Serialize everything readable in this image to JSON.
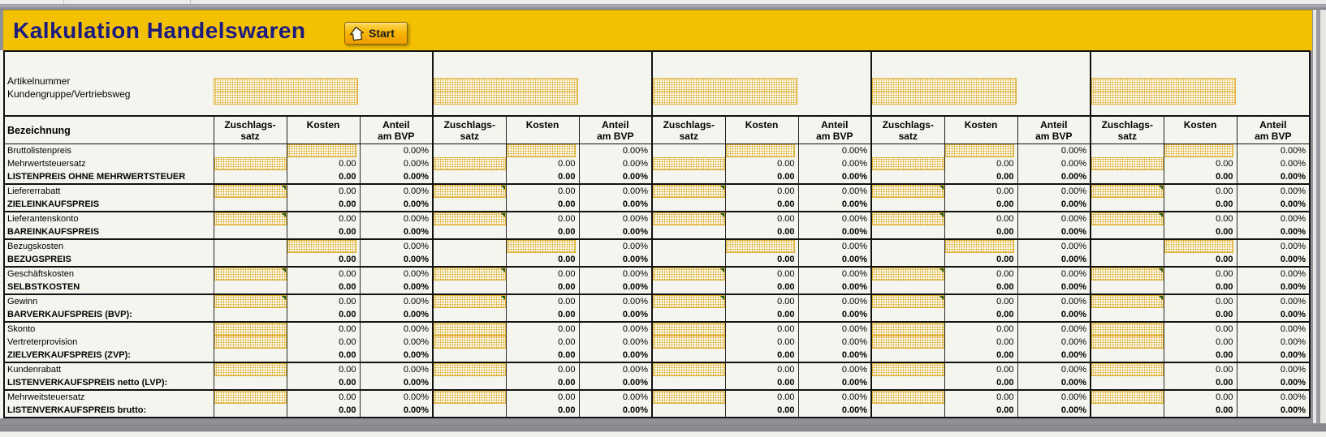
{
  "header": {
    "title": "Kalkulation Handelswaren",
    "start_button_label": "Start"
  },
  "info_panel": {
    "row_labels": [
      "Artikelnummer",
      "Kundengruppe/Vertriebsweg"
    ]
  },
  "table": {
    "label_header": "Bezeichnung",
    "group_count": 5,
    "column_headers": [
      {
        "key": "zuschlagssatz",
        "line1": "Zuschlags-",
        "line2": "satz"
      },
      {
        "key": "kosten",
        "line1": "Kosten",
        "line2": ""
      },
      {
        "key": "anteil-am-bvp",
        "line1": "Anteil",
        "line2": "am BVP"
      }
    ],
    "rows": [
      {
        "label": "Bruttolistenpreis",
        "bold": false,
        "zs_input": false,
        "kosten_input": true,
        "err": false,
        "kosten": "",
        "anteil": "0.00%",
        "section_end": false
      },
      {
        "label": "Mehrwertsteuersatz",
        "bold": false,
        "zs_input": true,
        "kosten_input": false,
        "err": false,
        "kosten": "0.00",
        "anteil": "0.00%",
        "section_end": false
      },
      {
        "label": "LISTENPREIS OHNE MEHRWERTSTEUER",
        "bold": true,
        "zs_input": false,
        "kosten_input": false,
        "err": false,
        "kosten": "0.00",
        "anteil": "0.00%",
        "section_end": true
      },
      {
        "label": "Liefererrabatt",
        "bold": false,
        "zs_input": true,
        "kosten_input": false,
        "err": true,
        "kosten": "0.00",
        "anteil": "0.00%",
        "section_end": false
      },
      {
        "label": "ZIELEINKAUFSPREIS",
        "bold": true,
        "zs_input": false,
        "kosten_input": false,
        "err": false,
        "kosten": "0.00",
        "anteil": "0.00%",
        "section_end": true
      },
      {
        "label": "Lieferantenskonto",
        "bold": false,
        "zs_input": true,
        "kosten_input": false,
        "err": true,
        "kosten": "0.00",
        "anteil": "0.00%",
        "section_end": false
      },
      {
        "label": "BAREINKAUFSPREIS",
        "bold": true,
        "zs_input": false,
        "kosten_input": false,
        "err": false,
        "kosten": "0.00",
        "anteil": "0.00%",
        "section_end": true
      },
      {
        "label": "Bezugskosten",
        "bold": false,
        "zs_input": false,
        "kosten_input": true,
        "err": false,
        "kosten": "",
        "anteil": "0.00%",
        "section_end": false
      },
      {
        "label": "BEZUGSPREIS",
        "bold": true,
        "zs_input": false,
        "kosten_input": false,
        "err": false,
        "kosten": "0.00",
        "anteil": "0.00%",
        "section_end": true
      },
      {
        "label": "Geschäftskosten",
        "bold": false,
        "zs_input": true,
        "kosten_input": false,
        "err": true,
        "kosten": "0.00",
        "anteil": "0.00%",
        "section_end": false
      },
      {
        "label": "SELBSTKOSTEN",
        "bold": true,
        "zs_input": false,
        "kosten_input": false,
        "err": false,
        "kosten": "0.00",
        "anteil": "0.00%",
        "section_end": true
      },
      {
        "label": "Gewinn",
        "bold": false,
        "zs_input": true,
        "kosten_input": false,
        "err": true,
        "kosten": "0.00",
        "anteil": "0.00%",
        "section_end": false
      },
      {
        "label": "BARVERKAUFSPREIS (BVP):",
        "bold": true,
        "zs_input": false,
        "kosten_input": false,
        "err": false,
        "kosten": "0.00",
        "anteil": "0.00%",
        "section_end": true
      },
      {
        "label": "Skonto",
        "bold": false,
        "zs_input": true,
        "kosten_input": false,
        "err": false,
        "kosten": "0.00",
        "anteil": "0.00%",
        "section_end": false
      },
      {
        "label": "Vertreterprovision",
        "bold": false,
        "zs_input": true,
        "kosten_input": false,
        "err": false,
        "kosten": "0.00",
        "anteil": "0.00%",
        "section_end": false
      },
      {
        "label": "ZIELVERKAUFSPREIS (ZVP):",
        "bold": true,
        "zs_input": false,
        "kosten_input": false,
        "err": false,
        "kosten": "0.00",
        "anteil": "0.00%",
        "section_end": true
      },
      {
        "label": "Kundenrabatt",
        "bold": false,
        "zs_input": true,
        "kosten_input": false,
        "err": false,
        "kosten": "0.00",
        "anteil": "0.00%",
        "section_end": false
      },
      {
        "label": "LISTENVERKAUFSPREIS netto (LVP):",
        "bold": true,
        "zs_input": false,
        "kosten_input": false,
        "err": false,
        "kosten": "0.00",
        "anteil": "0.00%",
        "section_end": true
      },
      {
        "label": "Mehrweitsteuersatz",
        "bold": false,
        "zs_input": true,
        "kosten_input": false,
        "err": false,
        "kosten": "0.00",
        "anteil": "0.00%",
        "section_end": false
      },
      {
        "label": "LISTENVERKAUFSPREIS brutto:",
        "bold": true,
        "zs_input": false,
        "kosten_input": false,
        "err": false,
        "kosten": "0.00",
        "anteil": "0.00%",
        "section_end": true
      }
    ]
  },
  "colors": {
    "banner_yellow": "#F3C101",
    "title_text": "#1B1B80",
    "input_cell_border": "#E0B23A",
    "input_cell_dot": "#D8A320",
    "error_indicator_green": "#1D5C1D",
    "sheet_background": "#F5F5F0"
  }
}
